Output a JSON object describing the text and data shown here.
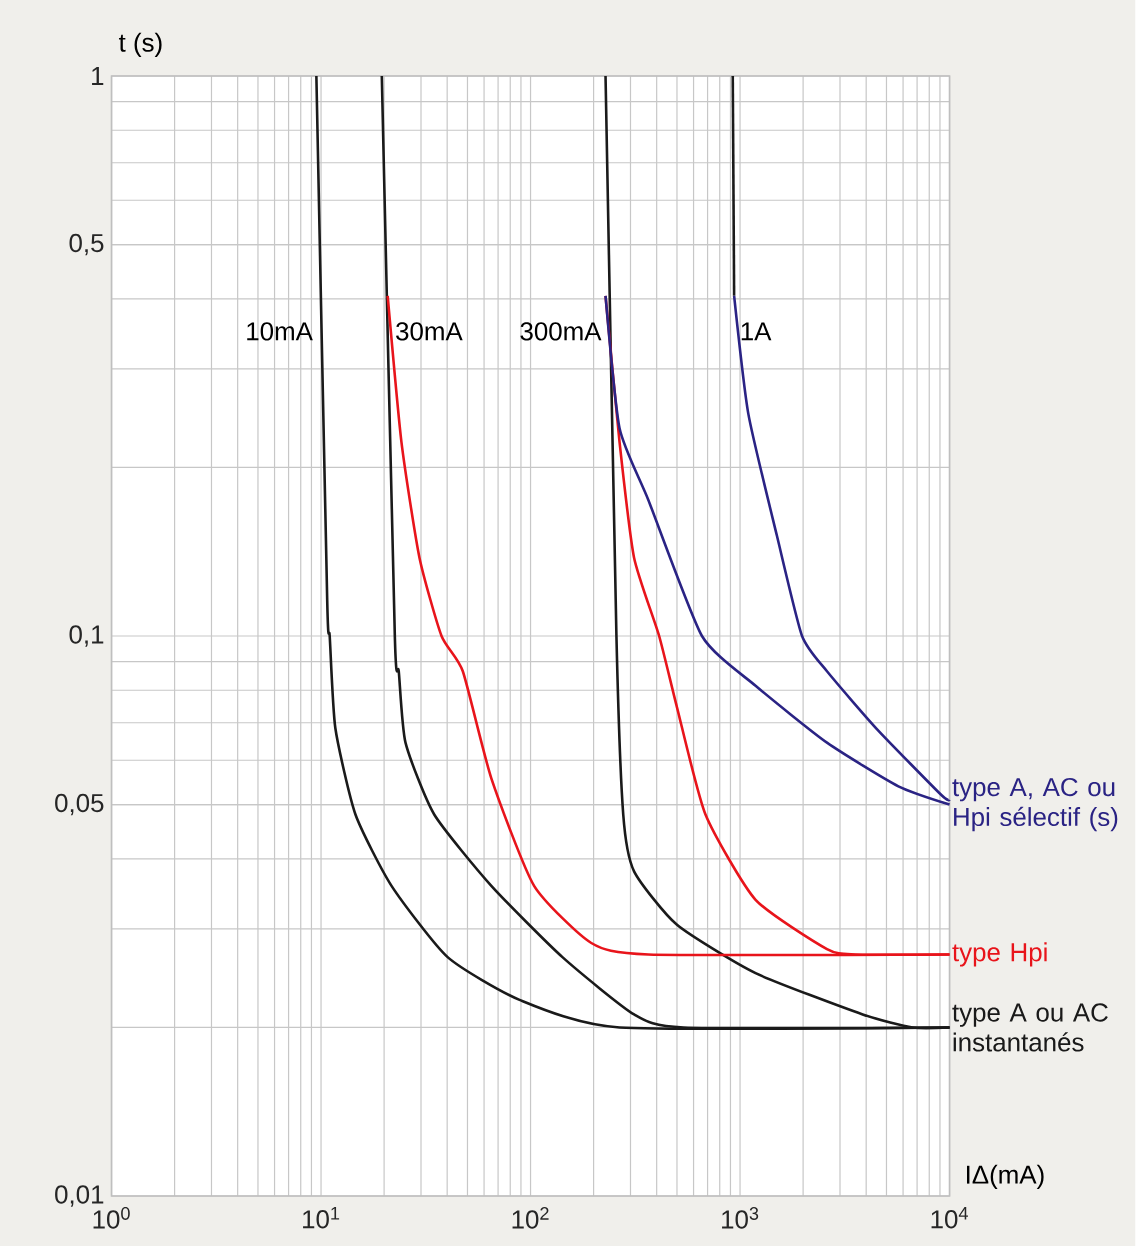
{
  "chart_data": {
    "type": "line",
    "log": "xy",
    "grid": true,
    "marker": "none",
    "line_style": "solid",
    "xlabel": "IΔ(mA)",
    "ylabel": "t (s)",
    "xlim": [
      1,
      10000
    ],
    "ylim": [
      0.01,
      1
    ],
    "xticks": [
      {
        "value": 1,
        "label": "10$^{0}$"
      },
      {
        "value": 10,
        "label": "10$^{1}$"
      },
      {
        "value": 100,
        "label": "10$^{2}$"
      },
      {
        "value": 1000,
        "label": "10$^{3}$"
      },
      {
        "value": 10000,
        "label": "10$^{4}$"
      }
    ],
    "yticks": [
      {
        "value": 0.01,
        "label": "0,01"
      },
      {
        "value": 0.05,
        "label": "0,05"
      },
      {
        "value": 0.1,
        "label": "0,1"
      },
      {
        "value": 0.5,
        "label": "0,5"
      },
      1
    ],
    "series": [
      {
        "name": "type A ou AC instantanés",
        "color": "#1a1a1a",
        "x": [
          9.5,
          10.7,
          11.0,
          11.7,
          14.6,
          21.7,
          40.2,
          88.6,
          266,
          10000
        ],
        "values": [
          1,
          0.116,
          0.1,
          0.0685,
          0.048,
          0.0358,
          0.0267,
          0.0224,
          0.02,
          0.02
        ]
      },
      {
        "color": "#1a1a1a",
        "x": [
          19.5,
          22.5,
          23.5,
          25.3,
          34.7,
          65,
          142,
          312,
          537,
          10000
        ],
        "values": [
          1,
          0.1,
          0.0865,
          0.0645,
          0.048,
          0.0358,
          0.0267,
          0.0211,
          0.02,
          0.02
        ]
      },
      {
        "color": "#1a1a1a",
        "x": [
          228,
          257,
          277,
          312,
          500,
          1186,
          3850,
          6670,
          10000
        ],
        "values": [
          1,
          0.1,
          0.048,
          0.038,
          0.0305,
          0.025,
          0.0211,
          0.02,
          0.02
        ]
      },
      {
        "color": "#1a1a1a",
        "x": [
          923,
          937
        ],
        "values": [
          1,
          0.405
        ]
      },
      {
        "color": "#e8141b",
        "x": [
          20.8,
          24.2,
          29.5,
          37.6,
          47.5,
          65,
          104,
          195,
          365,
          10000
        ],
        "values": [
          0.405,
          0.222,
          0.138,
          0.1,
          0.0865,
          0.0557,
          0.0358,
          0.0283,
          0.027,
          0.027
        ]
      },
      {
        "name": "type Hpi",
        "color": "#e8141b",
        "x": [
          228,
          266,
          312,
          411,
          500,
          684,
          1186,
          2600,
          3560,
          10000
        ],
        "values": [
          0.405,
          0.222,
          0.138,
          0.1,
          0.0746,
          0.048,
          0.0338,
          0.0276,
          0.027,
          0.027
        ]
      },
      {
        "name": "type A, AC ou Hpi sélectif (s)",
        "color": "#2a2384",
        "x": [
          228,
          266,
          365,
          658,
          1186,
          2600,
          5700,
          10000
        ],
        "values": [
          0.405,
          0.235,
          0.175,
          0.1,
          0.0815,
          0.0645,
          0.0539,
          0.05
        ]
      },
      {
        "color": "#2a2384",
        "x": [
          937,
          1096,
          1500,
          1977,
          2600,
          4500,
          9140,
          10000
        ],
        "values": [
          0.405,
          0.249,
          0.151,
          0.1,
          0.0865,
          0.0682,
          0.052,
          0.051
        ]
      }
    ],
    "annotations": [
      {
        "text": "10mA",
        "x": 9.6,
        "y": 0.35
      },
      {
        "text": "30mA",
        "x": 21.5,
        "y": 0.35
      },
      {
        "text": "300mA",
        "x": 229,
        "y": 0.35
      },
      {
        "text": "1A",
        "x": 950,
        "y": 0.35
      }
    ]
  }
}
